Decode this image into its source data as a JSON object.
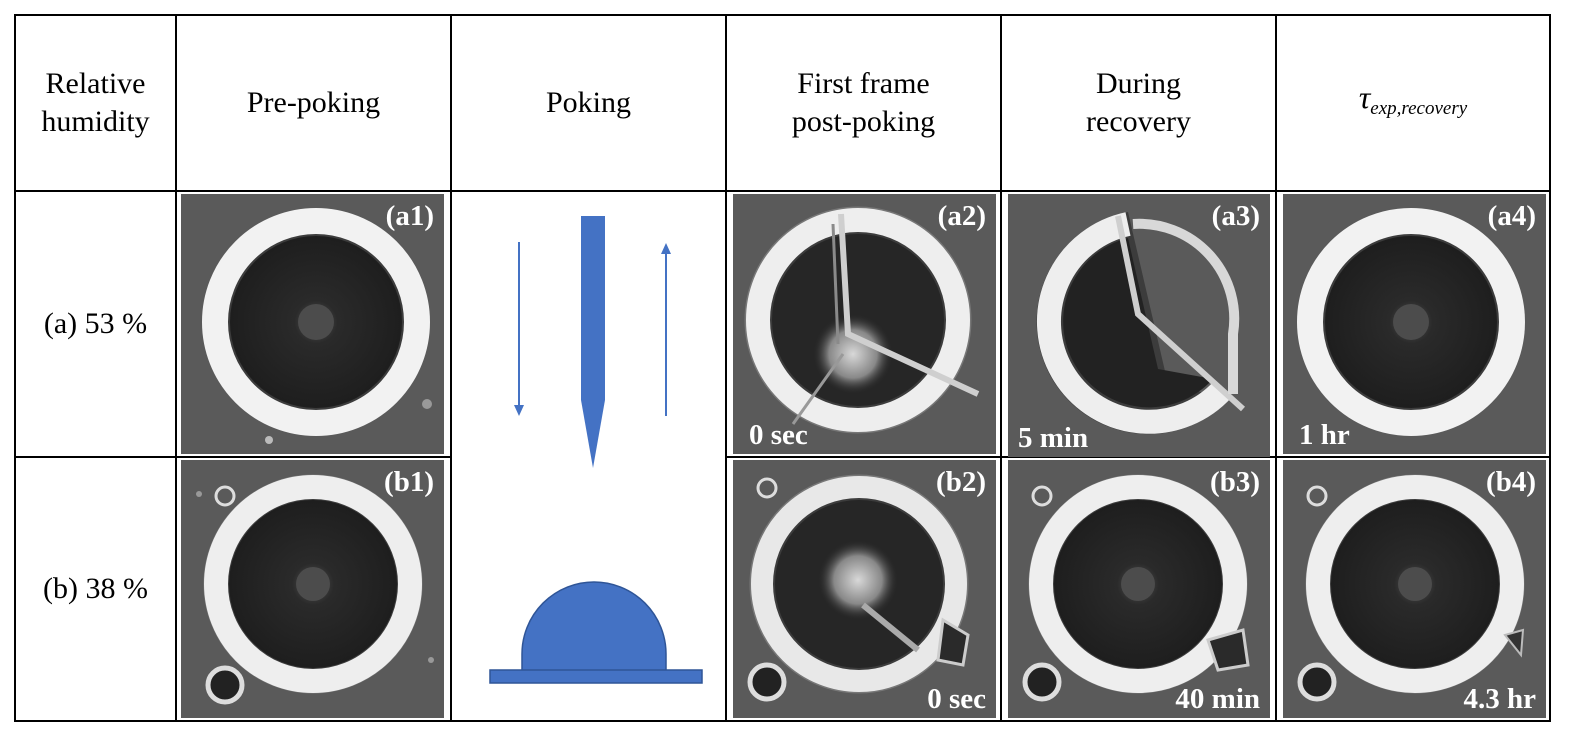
{
  "header": {
    "col1": [
      "Relative",
      "humidity"
    ],
    "col2": "Pre-poking",
    "col3": "Poking",
    "col4": [
      "First frame",
      "post-poking"
    ],
    "col5": [
      "During",
      "recovery"
    ],
    "col6_symbol": "τ",
    "col6_sub": "exp,recovery"
  },
  "rows": [
    {
      "label": "(a) 53 %"
    },
    {
      "label": "(b) 38 %"
    }
  ],
  "panels": {
    "a1": {
      "label": "(a1)",
      "time": ""
    },
    "a2": {
      "label": "(a2)",
      "time": "0 sec"
    },
    "a3": {
      "label": "(a3)",
      "time": "5 min"
    },
    "a4": {
      "label": "(a4)",
      "time": "1 hr"
    },
    "b1": {
      "label": "(b1)",
      "time": ""
    },
    "b2": {
      "label": "(b2)",
      "time": "0 sec"
    },
    "b3": {
      "label": "(b3)",
      "time": "40 min"
    },
    "b4": {
      "label": "(b4)",
      "time": "4.3 hr"
    }
  },
  "colors": {
    "schematic_blue": "#4472C4",
    "image_background": "#5a5a5a",
    "droplet_core": "#1e1e1e",
    "ring": "#f2f2f2"
  }
}
